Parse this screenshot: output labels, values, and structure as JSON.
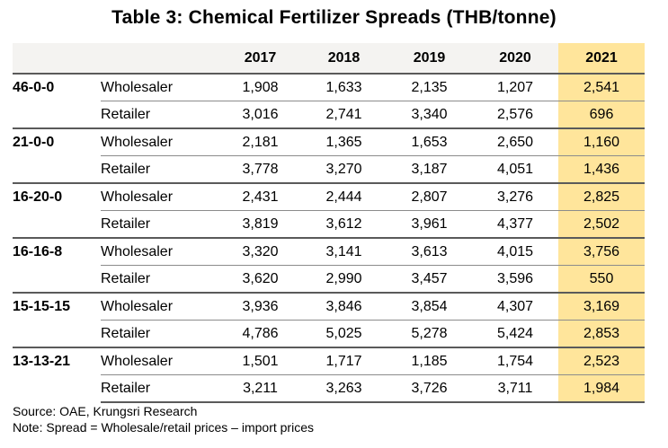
{
  "chart_data": {
    "type": "table",
    "title": "Table 3: Chemical Fertilizer Spreads (THB/tonne)",
    "columns": [
      "2017",
      "2018",
      "2019",
      "2020",
      "2021"
    ],
    "highlight_column": "2021",
    "highlight_color": "#ffe59b",
    "header_color": "#f4f3f1",
    "groups": [
      {
        "name": "46-0-0",
        "rows": [
          {
            "channel": "Wholesaler",
            "values": [
              "1,908",
              "1,633",
              "2,135",
              "1,207",
              "2,541"
            ]
          },
          {
            "channel": "Retailer",
            "values": [
              "3,016",
              "2,741",
              "3,340",
              "2,576",
              "696"
            ]
          }
        ]
      },
      {
        "name": "21-0-0",
        "rows": [
          {
            "channel": "Wholesaler",
            "values": [
              "2,181",
              "1,365",
              "1,653",
              "2,650",
              "1,160"
            ]
          },
          {
            "channel": "Retailer",
            "values": [
              "3,778",
              "3,270",
              "3,187",
              "4,051",
              "1,436"
            ]
          }
        ]
      },
      {
        "name": "16-20-0",
        "rows": [
          {
            "channel": "Wholesaler",
            "values": [
              "2,431",
              "2,444",
              "2,807",
              "3,276",
              "2,825"
            ]
          },
          {
            "channel": "Retailer",
            "values": [
              "3,819",
              "3,612",
              "3,961",
              "4,377",
              "2,502"
            ]
          }
        ]
      },
      {
        "name": "16-16-8",
        "rows": [
          {
            "channel": "Wholesaler",
            "values": [
              "3,320",
              "3,141",
              "3,613",
              "4,015",
              "3,756"
            ]
          },
          {
            "channel": "Retailer",
            "values": [
              "3,620",
              "2,990",
              "3,457",
              "3,596",
              "550"
            ]
          }
        ]
      },
      {
        "name": "15-15-15",
        "rows": [
          {
            "channel": "Wholesaler",
            "values": [
              "3,936",
              "3,846",
              "3,854",
              "4,307",
              "3,169"
            ]
          },
          {
            "channel": "Retailer",
            "values": [
              "4,786",
              "5,025",
              "5,278",
              "5,424",
              "2,853"
            ]
          }
        ]
      },
      {
        "name": "13-13-21",
        "rows": [
          {
            "channel": "Wholesaler",
            "values": [
              "1,501",
              "1,717",
              "1,185",
              "1,754",
              "2,523"
            ]
          },
          {
            "channel": "Retailer",
            "values": [
              "3,211",
              "3,263",
              "3,726",
              "3,711",
              "1,984"
            ]
          }
        ]
      }
    ]
  },
  "footnotes": {
    "source": "Source: OAE, Krungsri Research",
    "note": "Note: Spread = Wholesale/retail prices – import prices"
  }
}
